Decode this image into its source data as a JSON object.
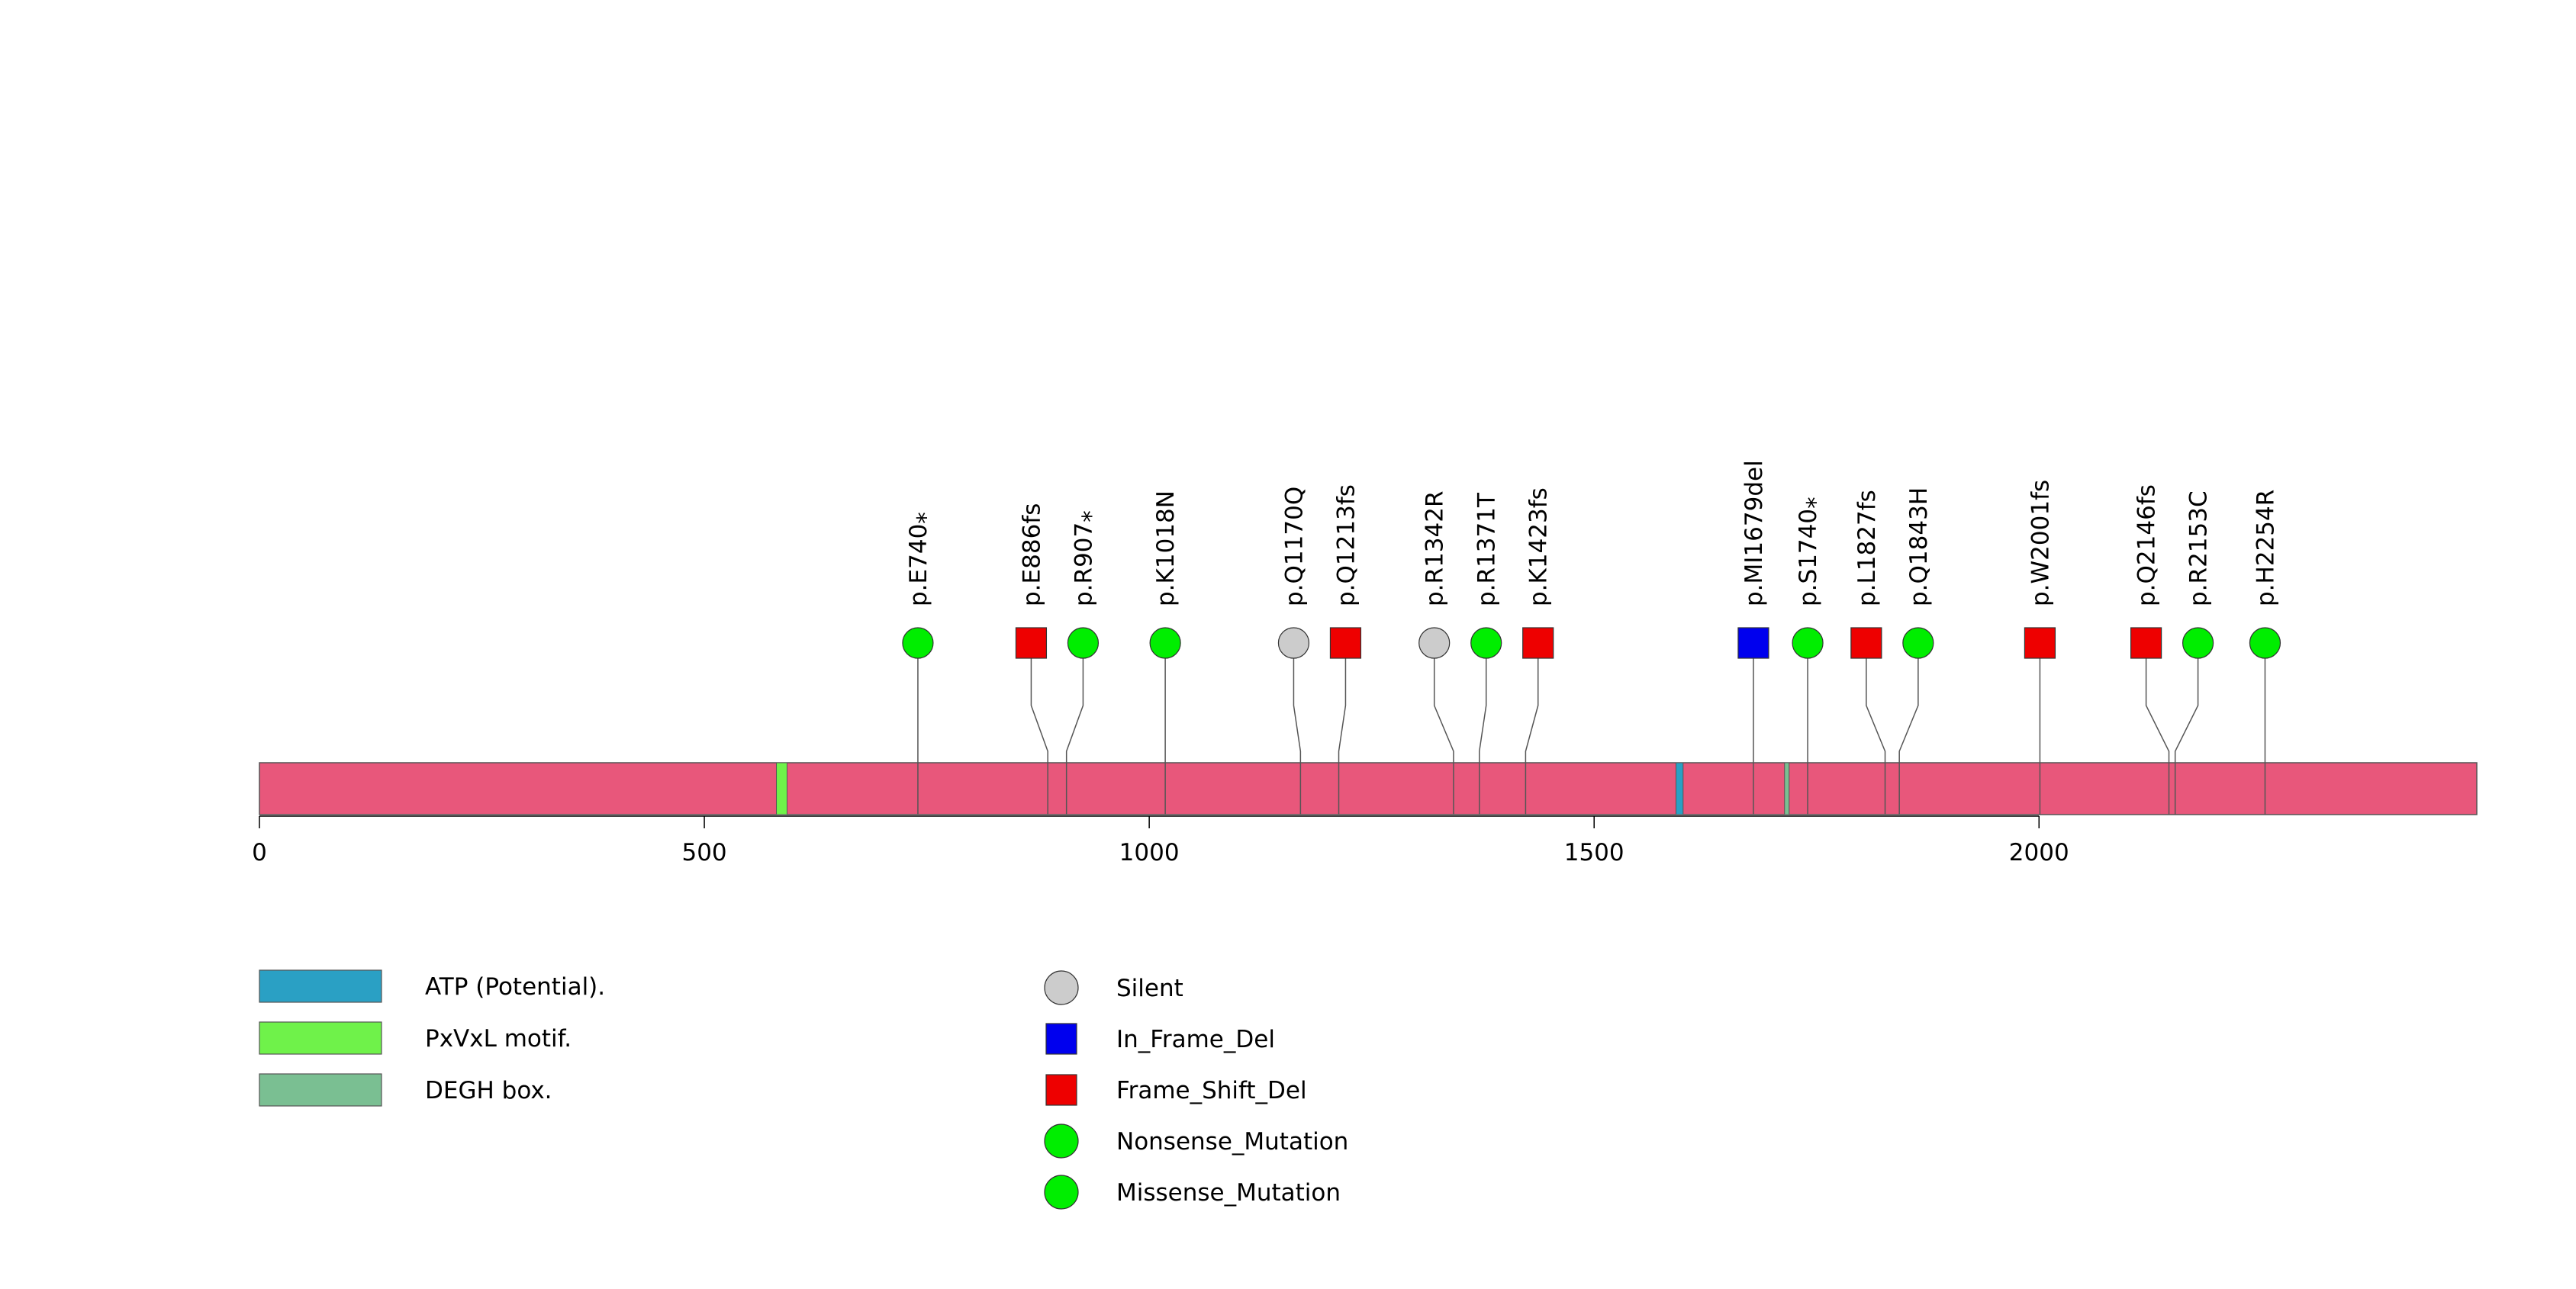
{
  "chart_data": {
    "type": "lollipop",
    "protein_length": 2492,
    "x_axis": {
      "min": 0,
      "max": 2492,
      "ticks": [
        0,
        500,
        1000,
        1500,
        2000
      ]
    },
    "backbone_color": "#E8577B",
    "domains": [
      {
        "name": "PxVxL motif.",
        "start": 581,
        "end": 593,
        "color": "#6FF24A"
      },
      {
        "name": "ATP (Potential).",
        "start": 1592,
        "end": 1600,
        "color": "#2AA0C4"
      },
      {
        "name": "DEGH box.",
        "start": 1714,
        "end": 1717,
        "color": "#7ABF92"
      }
    ],
    "legend_domains": [
      {
        "name": "ATP (Potential).",
        "color": "#2AA0C4"
      },
      {
        "name": "PxVxL motif.",
        "color": "#6FF24A"
      },
      {
        "name": "DEGH box.",
        "color": "#7ABF92"
      }
    ],
    "mutation_types": [
      {
        "name": "Silent",
        "shape": "circle",
        "color": "#CCCCCC"
      },
      {
        "name": "In_Frame_Del",
        "shape": "square",
        "color": "#0000EE"
      },
      {
        "name": "Frame_Shift_Del",
        "shape": "square",
        "color": "#EE0000"
      },
      {
        "name": "Nonsense_Mutation",
        "shape": "circle",
        "color": "#00EE00"
      },
      {
        "name": "Missense_Mutation",
        "shape": "circle",
        "color": "#00EE00"
      }
    ],
    "mutations": [
      {
        "label": "p.E740",
        "star": true,
        "position": 740,
        "type": "Nonsense_Mutation"
      },
      {
        "label": "p.E886fs",
        "star": false,
        "position": 886,
        "type": "Frame_Shift_Del"
      },
      {
        "label": "p.R907",
        "star": true,
        "position": 907,
        "type": "Nonsense_Mutation"
      },
      {
        "label": "p.K1018N",
        "star": false,
        "position": 1018,
        "type": "Missense_Mutation"
      },
      {
        "label": "p.Q1170Q",
        "star": false,
        "position": 1170,
        "type": "Silent"
      },
      {
        "label": "p.Q1213fs",
        "star": false,
        "position": 1213,
        "type": "Frame_Shift_Del"
      },
      {
        "label": "p.R1342R",
        "star": false,
        "position": 1342,
        "type": "Silent"
      },
      {
        "label": "p.R1371T",
        "star": false,
        "position": 1371,
        "type": "Missense_Mutation"
      },
      {
        "label": "p.K1423fs",
        "star": false,
        "position": 1423,
        "type": "Frame_Shift_Del"
      },
      {
        "label": "p.MI1679del",
        "star": false,
        "position": 1679,
        "type": "In_Frame_Del"
      },
      {
        "label": "p.S1740",
        "star": true,
        "position": 1740,
        "type": "Nonsense_Mutation"
      },
      {
        "label": "p.L1827fs",
        "star": false,
        "position": 1827,
        "type": "Frame_Shift_Del"
      },
      {
        "label": "p.Q1843H",
        "star": false,
        "position": 1843,
        "type": "Missense_Mutation"
      },
      {
        "label": "p.W2001fs",
        "star": false,
        "position": 2001,
        "type": "Frame_Shift_Del"
      },
      {
        "label": "p.Q2146fs",
        "star": false,
        "position": 2146,
        "type": "Frame_Shift_Del"
      },
      {
        "label": "p.R2153C",
        "star": false,
        "position": 2153,
        "type": "Missense_Mutation"
      },
      {
        "label": "p.H2254R",
        "star": false,
        "position": 2254,
        "type": "Missense_Mutation"
      }
    ],
    "star_symbol": "*"
  }
}
